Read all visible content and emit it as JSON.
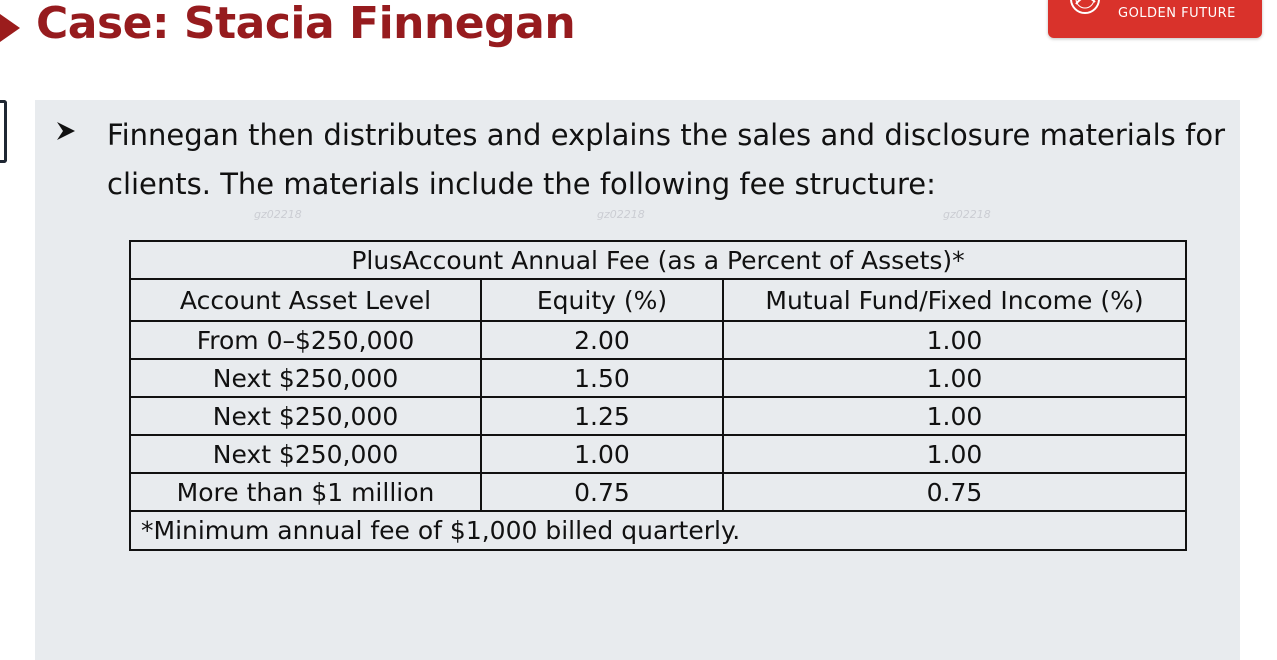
{
  "slide": {
    "title": "Case: Stacia Finnegan"
  },
  "logo": {
    "text": "GOLDEN FUTURE",
    "color": "#d9322b"
  },
  "bullet": {
    "icon": "arrowhead-bullet-icon",
    "text": "Finnegan then distributes and explains the sales and disclosure materials for clients. The materials include the following fee structure:"
  },
  "watermark": {
    "text": "gz02218"
  },
  "fee_table": {
    "caption": "PlusAccount Annual Fee (as a Percent of Assets)*",
    "headers": [
      "Account Asset Level",
      "Equity (%)",
      "Mutual Fund/Fixed Income (%)"
    ],
    "rows": [
      [
        "From 0–$250,000",
        "2.00",
        "1.00"
      ],
      [
        "Next $250,000",
        "1.50",
        "1.00"
      ],
      [
        "Next $250,000",
        "1.25",
        "1.00"
      ],
      [
        "Next $250,000",
        "1.00",
        "1.00"
      ],
      [
        "More than $1 million",
        "0.75",
        "0.75"
      ]
    ],
    "footnote": "*Minimum annual fee of $1,000 billed quarterly."
  },
  "colors": {
    "title": "#961b1e",
    "panel_background": "#e8ebee",
    "text": "#111111"
  }
}
